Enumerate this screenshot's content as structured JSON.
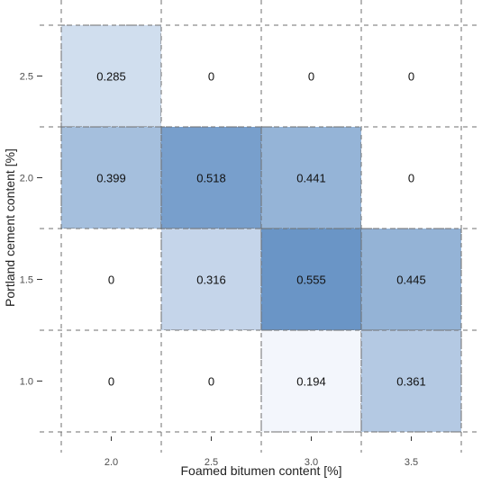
{
  "chart_data": {
    "type": "heatmap",
    "title": "",
    "xlabel": "Foamed bitumen content [%]",
    "ylabel": "Portland cement content [%]",
    "x_categories": [
      "2.0",
      "2.5",
      "3.0",
      "3.5"
    ],
    "y_categories": [
      "2.5",
      "2.0",
      "1.5",
      "1.0"
    ],
    "values": [
      [
        0.285,
        0,
        0,
        0
      ],
      [
        0.399,
        0.518,
        0.441,
        0
      ],
      [
        0,
        0.316,
        0.555,
        0.445
      ],
      [
        0,
        0,
        0.194,
        0.361
      ]
    ],
    "value_labels": [
      [
        "0.285",
        "0",
        "0",
        "0"
      ],
      [
        "0.399",
        "0.518",
        "0.441",
        "0"
      ],
      [
        "0",
        "0.316",
        "0.555",
        "0.445"
      ],
      [
        "0",
        "0",
        "0.194",
        "0.361"
      ]
    ],
    "color_low": "#f3f6fc",
    "color_high": "#6a95c6",
    "zero_color": "#ffffff",
    "grid": true,
    "legend": "none"
  }
}
